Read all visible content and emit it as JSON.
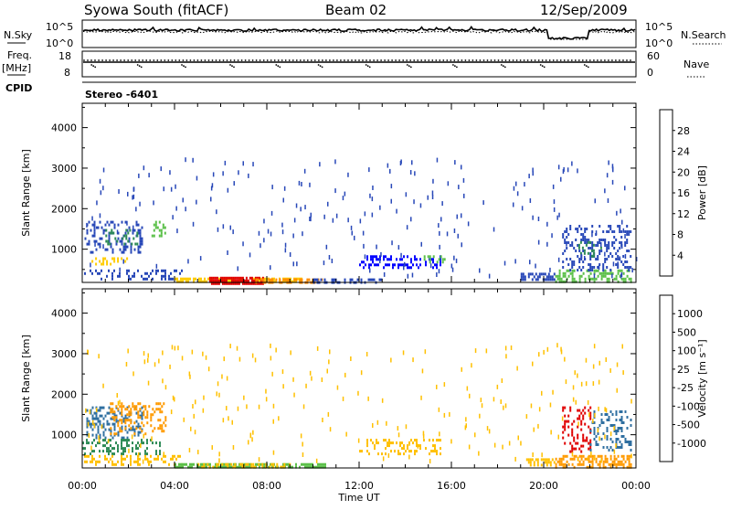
{
  "header": {
    "station": "Syowa South (fitACF)",
    "beam": "Beam 02",
    "date": "12/Sep/2009"
  },
  "strip": {
    "nsky_label": "N.Sky",
    "nsky_ticks": [
      "10^5",
      "10^0"
    ],
    "nsearch_label": "N.Search",
    "nsearch_ticks": [
      "10^5",
      "10^0"
    ],
    "freq_label": "Freq.",
    "freq_unit": "[MHz]",
    "freq_ticks": [
      "18",
      "8"
    ],
    "nave_label": "Nave",
    "nave_ticks": [
      "60",
      "0"
    ],
    "cpid_label": "CPID",
    "cpid_value": "Stereo -6401"
  },
  "chart_data": [
    {
      "type": "heatmap",
      "name": "power-panel",
      "ylabel": "Slant Range [km]",
      "yticks": [
        1000,
        2000,
        3000,
        4000
      ],
      "ylim": [
        180,
        4600
      ],
      "xlim": [
        0,
        24
      ],
      "colorbar": {
        "label": "Power [dB]",
        "ticks": [
          "4",
          "8",
          "12",
          "16",
          "20",
          "24",
          "28"
        ],
        "colors": [
          "#0000ff",
          "#2848b8",
          "#2e8b57",
          "#5cc04a",
          "#ffcc00",
          "#ff8c00",
          "#ff4000",
          "#e00000"
        ]
      },
      "regions": [
        {
          "t0": 0.1,
          "t1": 2.6,
          "r0": 900,
          "r1": 1700,
          "color": "#2848b8",
          "density": 0.3
        },
        {
          "t0": 1.0,
          "t1": 2.4,
          "r0": 1100,
          "r1": 1500,
          "color": "#2e8b57",
          "density": 0.25
        },
        {
          "t0": 3.0,
          "t1": 3.6,
          "r0": 1300,
          "r1": 1700,
          "color": "#5cc04a",
          "density": 0.35
        },
        {
          "t0": 0.4,
          "t1": 2.0,
          "r0": 650,
          "r1": 800,
          "color": "#ffcc00",
          "density": 0.35
        },
        {
          "t0": 0.0,
          "t1": 4.3,
          "r0": 280,
          "r1": 500,
          "color": "#2848b8",
          "density": 0.25
        },
        {
          "t0": 4.0,
          "t1": 9.5,
          "r0": 180,
          "r1": 300,
          "color": "#ffcc00",
          "density": 0.7
        },
        {
          "t0": 5.5,
          "t1": 7.8,
          "r0": 180,
          "r1": 320,
          "color": "#e00000",
          "density": 0.85
        },
        {
          "t0": 7.5,
          "t1": 10.5,
          "r0": 180,
          "r1": 280,
          "color": "#ff8c00",
          "density": 0.55
        },
        {
          "t0": 10.0,
          "t1": 13.0,
          "r0": 180,
          "r1": 280,
          "color": "#2848b8",
          "density": 0.4
        },
        {
          "t0": 12.0,
          "t1": 15.5,
          "r0": 550,
          "r1": 850,
          "color": "#0000ff",
          "density": 0.35
        },
        {
          "t0": 14.8,
          "t1": 15.8,
          "r0": 650,
          "r1": 850,
          "color": "#5cc04a",
          "density": 0.5
        },
        {
          "t0": 19.0,
          "t1": 20.5,
          "r0": 280,
          "r1": 420,
          "color": "#2848b8",
          "density": 0.45
        },
        {
          "t0": 20.5,
          "t1": 23.8,
          "r0": 180,
          "r1": 500,
          "color": "#5cc04a",
          "density": 0.4
        },
        {
          "t0": 20.8,
          "t1": 23.8,
          "r0": 500,
          "r1": 1600,
          "color": "#2848b8",
          "density": 0.28
        },
        {
          "t0": 21.5,
          "t1": 22.5,
          "r0": 800,
          "r1": 1200,
          "color": "#2e8b57",
          "density": 0.3
        }
      ],
      "scatter_color": "#2848b8"
    },
    {
      "type": "heatmap",
      "name": "velocity-panel",
      "ylabel": "Slant Range [km]",
      "yticks": [
        1000,
        2000,
        3000,
        4000
      ],
      "ylim": [
        180,
        4600
      ],
      "xlim": [
        0,
        24
      ],
      "xlabel": "Time UT",
      "xticks": [
        "00:00",
        "04:00",
        "08:00",
        "12:00",
        "16:00",
        "20:00",
        "00:00"
      ],
      "colorbar": {
        "label": "Velocity [m s⁻¹]",
        "ticks": [
          "1000",
          "500",
          "100",
          "25",
          "-25",
          "-100",
          "-500",
          "-1000"
        ],
        "colors": [
          "#1e3cc8",
          "#2f6fa0",
          "#2e8b57",
          "#5cc04a",
          "#b0b0b0",
          "#ffc000",
          "#ff9a00",
          "#ff6000",
          "#e00000"
        ]
      },
      "regions": [
        {
          "t0": 0.1,
          "t1": 2.6,
          "r0": 900,
          "r1": 1700,
          "color": "#2f6fa0",
          "density": 0.3
        },
        {
          "t0": 1.2,
          "t1": 3.6,
          "r0": 1000,
          "r1": 1800,
          "color": "#ff9a00",
          "density": 0.3
        },
        {
          "t0": 0.0,
          "t1": 3.5,
          "r0": 500,
          "r1": 900,
          "color": "#2e8b57",
          "density": 0.28
        },
        {
          "t0": 0.0,
          "t1": 4.3,
          "r0": 250,
          "r1": 500,
          "color": "#ffc000",
          "density": 0.28
        },
        {
          "t0": 4.0,
          "t1": 10.5,
          "r0": 180,
          "r1": 300,
          "color": "#5cc04a",
          "density": 0.7
        },
        {
          "t0": 5.0,
          "t1": 9.0,
          "r0": 180,
          "r1": 300,
          "color": "#ffc000",
          "density": 0.4
        },
        {
          "t0": 12.0,
          "t1": 15.5,
          "r0": 550,
          "r1": 900,
          "color": "#ffc000",
          "density": 0.3
        },
        {
          "t0": 19.0,
          "t1": 20.5,
          "r0": 280,
          "r1": 420,
          "color": "#ffc000",
          "density": 0.45
        },
        {
          "t0": 20.5,
          "t1": 23.8,
          "r0": 180,
          "r1": 500,
          "color": "#ff9a00",
          "density": 0.55
        },
        {
          "t0": 20.8,
          "t1": 22.0,
          "r0": 600,
          "r1": 1700,
          "color": "#e00000",
          "density": 0.25
        },
        {
          "t0": 22.0,
          "t1": 23.8,
          "r0": 600,
          "r1": 1600,
          "color": "#2f6fa0",
          "density": 0.25
        }
      ],
      "scatter_color": "#ffc000"
    }
  ]
}
